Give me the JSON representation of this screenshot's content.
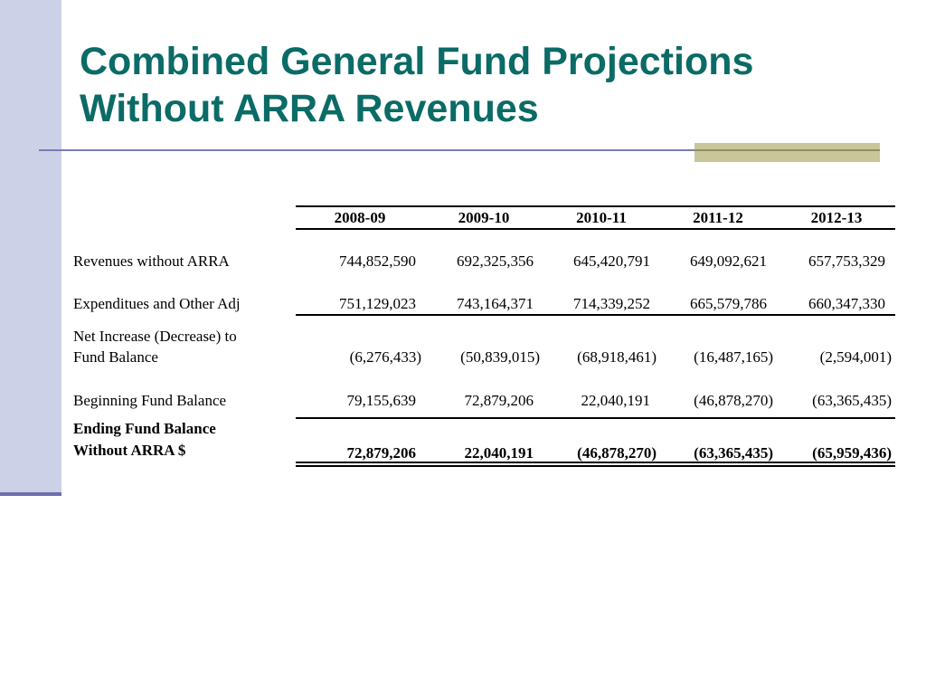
{
  "slide": {
    "title_line1": "Combined General Fund Projections",
    "title_line2": "Without ARRA Revenues"
  },
  "table": {
    "columns": [
      "2008-09",
      "2009-10",
      "2010-11",
      "2011-12",
      "2012-13"
    ],
    "rows": [
      {
        "label": "Revenues without ARRA",
        "values": [
          "744,852,590",
          "692,325,356",
          "645,420,791",
          "649,092,621",
          "657,753,329"
        ]
      },
      {
        "label": "Expenditues and Other Adj",
        "values": [
          "751,129,023",
          "743,164,371",
          "714,339,252",
          "665,579,786",
          "660,347,330"
        ]
      },
      {
        "label_line1": "Net Increase (Decrease) to",
        "label_line2": "Fund Balance",
        "values": [
          "(6,276,433)",
          "(50,839,015)",
          "(68,918,461)",
          "(16,487,165)",
          "(2,594,001)"
        ]
      },
      {
        "label": "Beginning Fund Balance",
        "values": [
          "79,155,639",
          "72,879,206",
          "22,040,191",
          "(46,878,270)",
          "(63,365,435)"
        ]
      },
      {
        "label_line1": "Ending Fund Balance",
        "label_line2": "Without ARRA $",
        "values": [
          "72,879,206",
          "22,040,191",
          "(46,878,270)",
          "(63,365,435)",
          "(65,959,436)"
        ]
      }
    ]
  }
}
